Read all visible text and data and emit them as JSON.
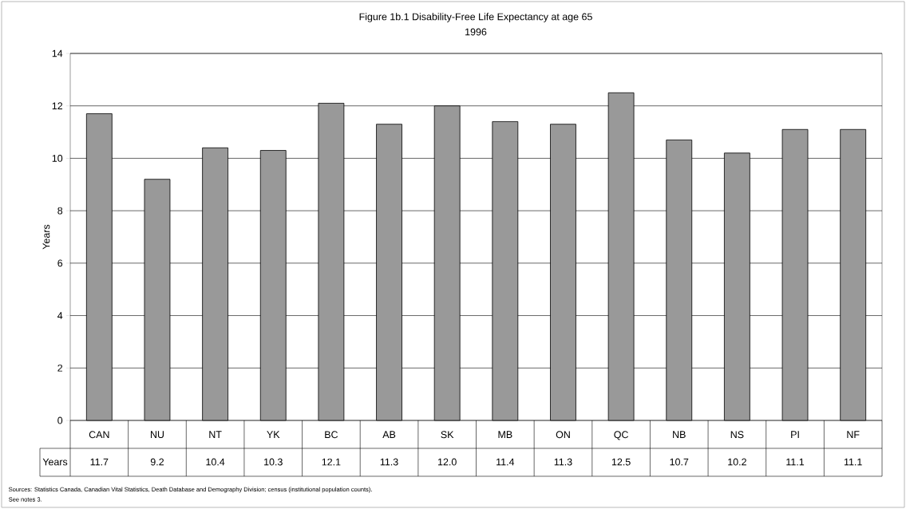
{
  "chart_data": {
    "type": "bar",
    "title": "Figure 1b.1  Disability-Free Life Expectancy at age 65",
    "subtitle": "1996",
    "ylabel": "Years",
    "categories": [
      "CAN",
      "NU",
      "NT",
      "YK",
      "BC",
      "AB",
      "SK",
      "MB",
      "ON",
      "QC",
      "NB",
      "NS",
      "PI",
      "NF"
    ],
    "series": [
      {
        "name": "Years",
        "color": "#999999",
        "values": [
          11.7,
          9.2,
          10.4,
          10.3,
          12.1,
          11.3,
          12.0,
          11.4,
          11.3,
          12.5,
          10.7,
          10.2,
          11.1,
          11.1
        ],
        "value_labels": [
          "11.7",
          "9.2",
          "10.4",
          "10.3",
          "12.1",
          "11.3",
          "12.0",
          "11.4",
          "11.3",
          "12.5",
          "10.7",
          "10.2",
          "11.1",
          "11.1"
        ]
      }
    ],
    "ylim": [
      0,
      14
    ],
    "yticks": [
      0,
      2,
      4,
      6,
      8,
      10,
      12,
      14
    ],
    "grid": "y",
    "legend": false,
    "annotations": [
      "Sources: Statistics Canada, Canadian Vital Statistics, Death Database and Demography Division; census (institutional population counts).",
      "See notes 3."
    ]
  }
}
